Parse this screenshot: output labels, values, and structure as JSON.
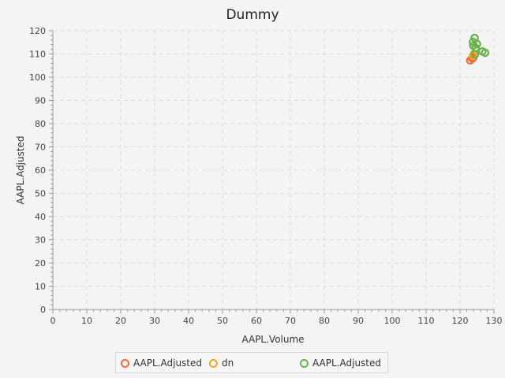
{
  "chart_data": {
    "type": "scatter",
    "title": "Dummy",
    "xlabel": "AAPL.Volume",
    "ylabel": "AAPL.Adjusted",
    "xlim": [
      0,
      130
    ],
    "ylim": [
      0,
      120
    ],
    "x_ticks": [
      0,
      10,
      20,
      30,
      40,
      50,
      60,
      70,
      80,
      90,
      100,
      110,
      120,
      130
    ],
    "y_ticks": [
      0,
      10,
      20,
      30,
      40,
      50,
      60,
      70,
      80,
      90,
      100,
      110,
      120
    ],
    "grid": true,
    "legend_position": "bottom",
    "series": [
      {
        "name": "AAPL.Adjusted",
        "color": "#f06a3c",
        "points": [
          [
            123.0,
            107.2
          ],
          [
            123.6,
            108.0
          ],
          [
            123.9,
            108.4
          ]
        ]
      },
      {
        "name": "dn",
        "color": "#f5a623",
        "points": [
          [
            123.8,
            109.2
          ],
          [
            124.1,
            110.0
          ]
        ]
      },
      {
        "name": "AAPL.Adjusted",
        "color": "#6ab04c",
        "points": [
          [
            123.8,
            115.2
          ],
          [
            124.3,
            116.9
          ],
          [
            123.9,
            113.6
          ],
          [
            125.0,
            114.3
          ],
          [
            124.6,
            112.6
          ],
          [
            126.6,
            111.1
          ],
          [
            127.4,
            110.5
          ],
          [
            124.4,
            109.8
          ]
        ]
      }
    ]
  }
}
